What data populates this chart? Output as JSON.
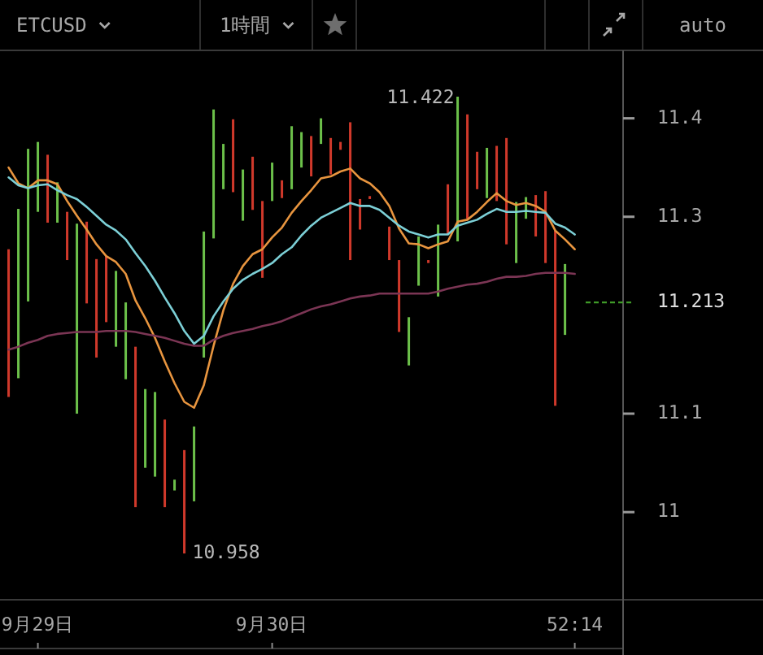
{
  "chart_data": {
    "type": "bar",
    "title": "ETCUSD",
    "subtitle": "1時間",
    "categories": [
      null,
      null,
      null,
      "9月29日",
      null,
      null,
      null,
      null,
      null,
      null,
      null,
      null,
      null,
      null,
      null,
      null,
      null,
      null,
      null,
      null,
      null,
      null,
      null,
      null,
      null,
      null,
      null,
      "9月30日",
      null,
      null,
      null,
      null,
      null,
      null,
      null,
      null,
      null,
      null,
      null,
      null,
      null,
      null,
      null,
      null,
      null,
      null,
      null,
      null,
      null,
      null,
      null,
      null,
      null,
      null,
      null,
      null,
      null,
      null,
      "52:14"
    ],
    "ylim": [
      10.911,
      11.469
    ],
    "yticks": [
      11,
      11.1,
      11.3,
      11.4
    ],
    "ref_lines": [
      {
        "axis": "y",
        "value": 11.213,
        "label": "11.213",
        "color": "#3f9a28",
        "line_style": "dashed"
      }
    ],
    "annotations": [
      "11.422",
      "10.958",
      "auto"
    ],
    "series": [
      {
        "base": [
          11.117,
          11.136,
          11.214,
          11.305,
          11.294,
          11.294,
          11.256,
          11.1,
          11.212,
          11.157,
          11.193,
          11.168,
          11.135,
          11.005,
          11.045,
          11.036,
          11.005,
          11.022,
          10.958,
          11.011,
          11.157,
          11.278,
          11.328,
          11.325,
          11.296,
          11.307,
          11.238,
          11.316,
          11.319,
          11.328,
          11.35,
          11.341,
          11.374,
          11.343,
          11.368,
          11.256,
          11.287,
          11.318,
          null,
          11.256,
          11.183,
          11.149,
          11.23,
          11.253,
          11.219,
          11.282,
          11.275,
          11.298,
          11.328,
          11.319,
          11.316,
          11.272,
          11.253,
          11.298,
          11.28,
          11.253,
          11.108,
          11.18,
          null
        ],
        "values": [
          0.15,
          0.172,
          0.155,
          0.071,
          0.069,
          0.041,
          0.049,
          0.193,
          0.083,
          0.1,
          0.067,
          0.077,
          0.078,
          0.163,
          0.08,
          0.086,
          0.089,
          0.011,
          0.105,
          0.076,
          0.128,
          0.131,
          0.046,
          0.074,
          0.052,
          0.054,
          0.078,
          0.039,
          0.018,
          0.064,
          0.036,
          0.041,
          0.026,
          0.037,
          0.008,
          0.14,
          0.031,
          0.003,
          null,
          0.034,
          0.073,
          0.049,
          0.05,
          0.003,
          0.073,
          0.051,
          0.147,
          0.106,
          0.038,
          0.051,
          0.056,
          0.108,
          0.062,
          0.022,
          0.042,
          0.073,
          0.178,
          0.072,
          null
        ],
        "colors": [
          "#d0392b",
          "#6cc04a",
          "#6cc04a",
          "#6cc04a",
          "#d0392b",
          "#6cc04a",
          "#d0392b",
          "#6cc04a",
          "#d0392b",
          "#d0392b",
          "#d0392b",
          "#6cc04a",
          "#6cc04a",
          "#d0392b",
          "#6cc04a",
          "#6cc04a",
          "#d0392b",
          "#6cc04a",
          "#d0392b",
          "#6cc04a",
          "#6cc04a",
          "#6cc04a",
          "#6cc04a",
          "#d0392b",
          "#6cc04a",
          "#d0392b",
          "#d0392b",
          "#6cc04a",
          "#d0392b",
          "#6cc04a",
          "#6cc04a",
          "#d0392b",
          "#6cc04a",
          "#d0392b",
          "#d0392b",
          "#d0392b",
          "#d0392b",
          "#d0392b",
          null,
          "#d0392b",
          "#d0392b",
          "#6cc04a",
          "#6cc04a",
          "#d0392b",
          "#6cc04a",
          "#d0392b",
          "#6cc04a",
          "#d0392b",
          "#d0392b",
          "#6cc04a",
          "#d0392b",
          "#d0392b",
          "#6cc04a",
          "#6cc04a",
          "#d0392b",
          "#d0392b",
          "#d0392b",
          "#6cc04a",
          null
        ]
      },
      {
        "type": "line",
        "color": "#e8953f",
        "values": [
          11.35,
          11.334,
          11.329,
          11.337,
          11.337,
          11.333,
          11.316,
          11.301,
          11.287,
          11.272,
          11.26,
          11.254,
          11.242,
          11.215,
          11.197,
          11.177,
          11.153,
          11.131,
          11.112,
          11.106,
          11.129,
          11.169,
          11.205,
          11.232,
          11.25,
          11.262,
          11.267,
          11.279,
          11.289,
          11.304,
          11.316,
          11.327,
          11.339,
          11.341,
          11.346,
          11.349,
          11.339,
          11.334,
          11.325,
          11.311,
          11.288,
          11.273,
          11.272,
          11.268,
          11.272,
          11.275,
          11.295,
          11.297,
          11.305,
          11.315,
          11.324,
          11.316,
          11.312,
          11.314,
          11.311,
          11.305,
          11.286,
          11.277,
          11.267
        ]
      },
      {
        "type": "line",
        "color": "#7ccfd6",
        "values": [
          11.34,
          11.332,
          11.329,
          11.332,
          11.333,
          11.327,
          11.322,
          11.318,
          11.31,
          11.301,
          11.292,
          11.286,
          11.277,
          11.263,
          11.25,
          11.235,
          11.218,
          11.202,
          11.184,
          11.171,
          11.179,
          11.199,
          11.214,
          11.227,
          11.236,
          11.242,
          11.247,
          11.253,
          11.262,
          11.269,
          11.281,
          11.291,
          11.299,
          11.304,
          11.309,
          11.314,
          11.311,
          11.311,
          11.307,
          11.299,
          11.291,
          11.285,
          11.282,
          11.279,
          11.282,
          11.282,
          11.291,
          11.294,
          11.297,
          11.303,
          11.308,
          11.305,
          11.305,
          11.306,
          11.305,
          11.304,
          11.293,
          11.289,
          11.282
        ]
      },
      {
        "type": "line",
        "color": "#7b3554",
        "values": [
          11.165,
          11.168,
          11.172,
          11.175,
          11.179,
          11.181,
          11.182,
          11.183,
          11.183,
          11.183,
          11.184,
          11.184,
          11.184,
          11.183,
          11.181,
          11.179,
          11.177,
          11.174,
          11.171,
          11.169,
          11.169,
          11.175,
          11.179,
          11.182,
          11.184,
          11.186,
          11.189,
          11.191,
          11.194,
          11.198,
          11.202,
          11.206,
          11.209,
          11.211,
          11.214,
          11.217,
          11.219,
          11.22,
          11.222,
          11.222,
          11.222,
          11.222,
          11.222,
          11.222,
          11.224,
          11.227,
          11.229,
          11.231,
          11.232,
          11.234,
          11.237,
          11.239,
          11.239,
          11.24,
          11.242,
          11.243,
          11.243,
          11.243,
          11.242
        ]
      }
    ]
  }
}
